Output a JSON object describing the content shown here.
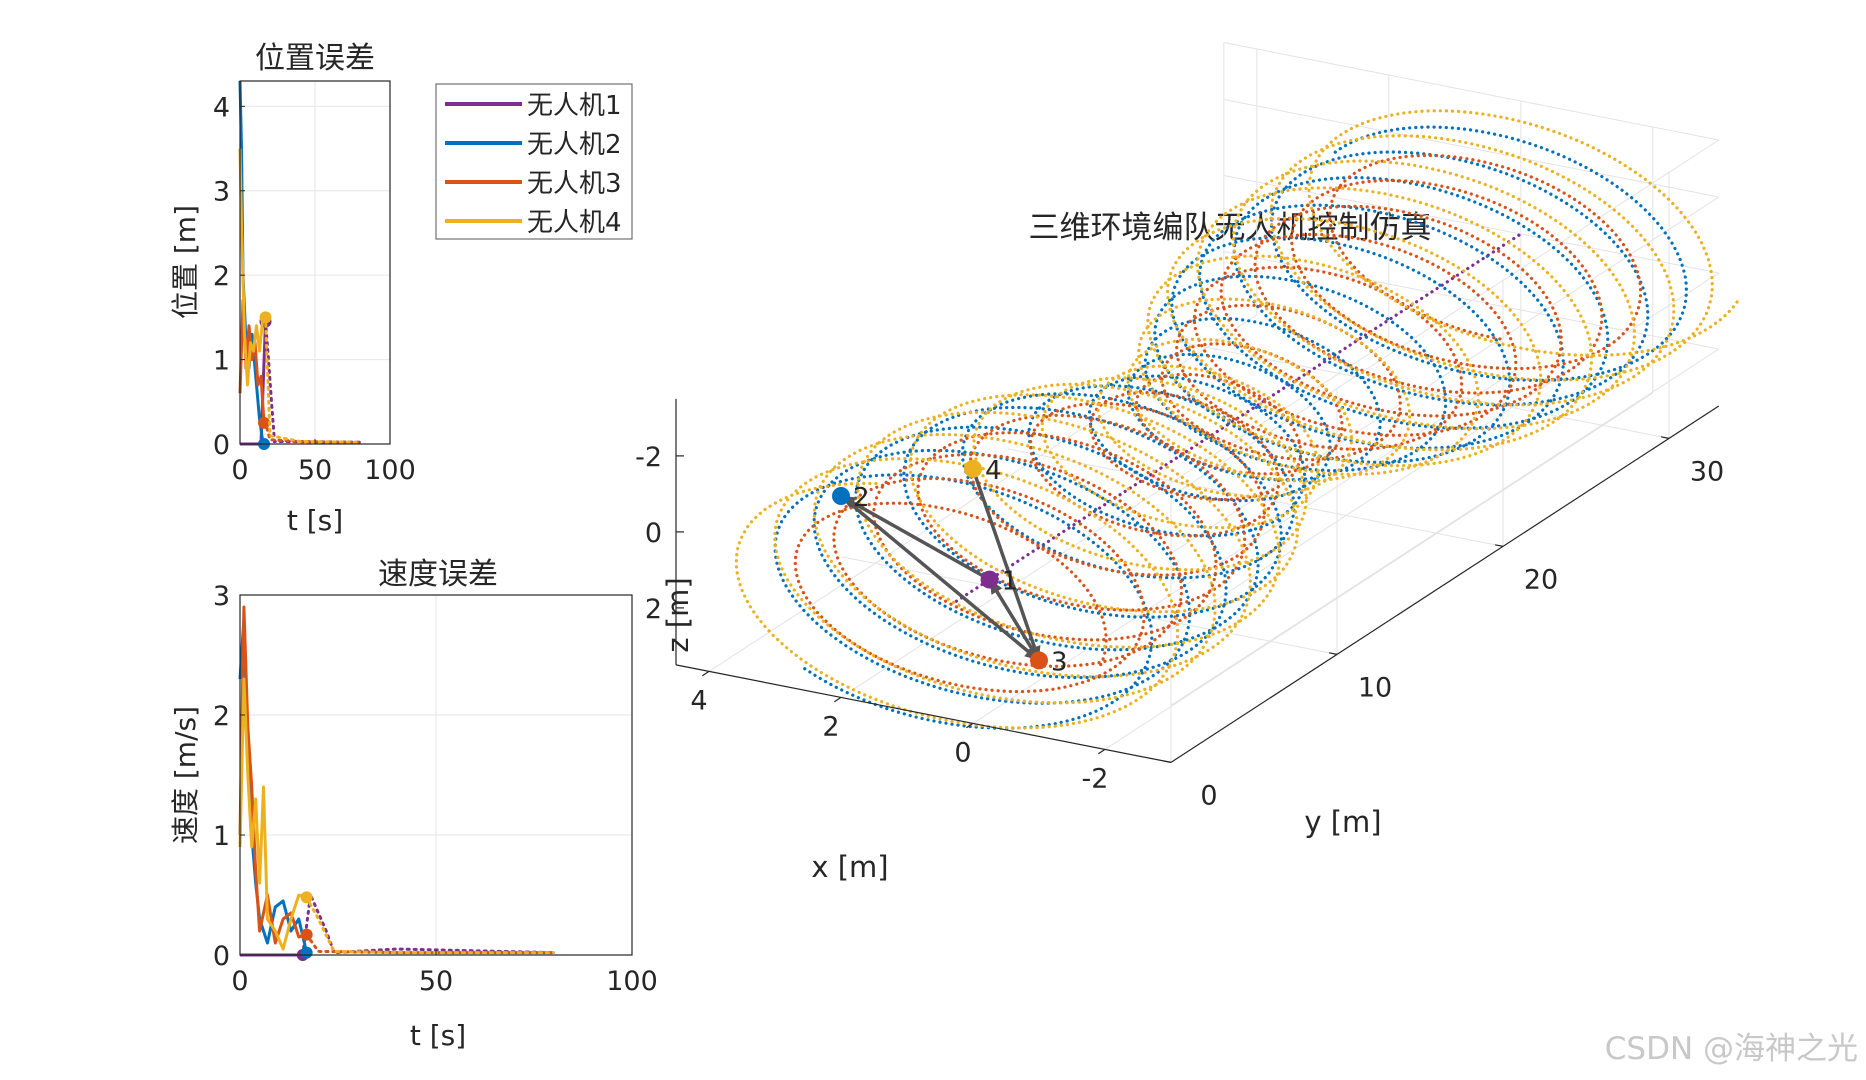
{
  "watermark": "CSDN @海神之光",
  "chart_data": [
    {
      "type": "line",
      "title": "位置误差",
      "xlabel": "t [s]",
      "ylabel": "位置 [m]",
      "xlim": [
        0,
        100
      ],
      "ylim": [
        0,
        4.3
      ],
      "xticks": [
        "0",
        "50",
        "100"
      ],
      "yticks": [
        "0",
        "1",
        "2",
        "3",
        "4"
      ],
      "grid": true,
      "legend": {
        "position": "top-right-outside",
        "entries": [
          "无人机1",
          "无人机2",
          "无人机3",
          "无人机4"
        ]
      },
      "series": [
        {
          "name": "无人机1",
          "color": "#7E2F8E",
          "style": "solid-then-dotted",
          "x": [
            0,
            14,
            17,
            19,
            21,
            23,
            80
          ],
          "y": [
            0,
            0,
            1.45,
            1.0,
            0.5,
            0.03,
            0.02
          ]
        },
        {
          "name": "无人机2",
          "color": "#0072BD",
          "style": "solid",
          "x": [
            0,
            1,
            2,
            4,
            6,
            8,
            10,
            13,
            15,
            16
          ],
          "y": [
            4.3,
            3.5,
            2.0,
            1.2,
            0.9,
            1.3,
            0.9,
            0.3,
            0.05,
            0
          ]
        },
        {
          "name": "无人机3",
          "color": "#D95319",
          "style": "solid-then-dotted",
          "x": [
            0,
            2,
            4,
            6,
            8,
            10,
            12,
            14,
            16,
            17,
            20,
            40,
            80
          ],
          "y": [
            0.6,
            1.7,
            0.9,
            1.4,
            1.0,
            1.2,
            0.7,
            0.8,
            0.25,
            0.25,
            0.05,
            0.03,
            0.02
          ]
        },
        {
          "name": "无人机4",
          "color": "#EDB120",
          "style": "solid-then-dotted",
          "x": [
            0,
            1,
            3,
            5,
            7,
            9,
            11,
            13,
            15,
            17,
            20,
            40,
            80
          ],
          "y": [
            3.5,
            2.6,
            1.3,
            0.7,
            1.2,
            1.1,
            1.4,
            1.1,
            1.45,
            1.5,
            0.1,
            0.03,
            0.02
          ]
        }
      ]
    },
    {
      "type": "line",
      "title": "速度误差",
      "xlabel": "t [s]",
      "ylabel": "速度 [m/s]",
      "xlim": [
        0,
        100
      ],
      "ylim": [
        0,
        3
      ],
      "xticks": [
        "0",
        "50",
        "100"
      ],
      "yticks": [
        "0",
        "1",
        "2",
        "3"
      ],
      "grid": true,
      "series": [
        {
          "name": "无人机1",
          "color": "#7E2F8E",
          "style": "solid-then-dotted",
          "x": [
            0,
            16,
            18,
            22,
            24,
            40,
            80
          ],
          "y": [
            0,
            0,
            0.5,
            0.2,
            0.02,
            0.05,
            0.02
          ]
        },
        {
          "name": "无人机2",
          "color": "#0072BD",
          "style": "solid",
          "x": [
            0,
            1,
            2,
            3,
            4,
            5,
            7,
            9,
            11,
            13,
            15,
            17
          ],
          "y": [
            2.3,
            2.8,
            1.7,
            1.0,
            0.6,
            0.3,
            0.1,
            0.4,
            0.45,
            0.2,
            0.3,
            0.02
          ]
        },
        {
          "name": "无人机3",
          "color": "#D95319",
          "style": "solid-then-dotted",
          "x": [
            0,
            1,
            2,
            3,
            4,
            5,
            7,
            9,
            11,
            13,
            15,
            17,
            20,
            40,
            80
          ],
          "y": [
            1.0,
            2.9,
            1.9,
            1.4,
            0.7,
            0.2,
            0.5,
            0.1,
            0.3,
            0.35,
            0.15,
            0.17,
            0.03,
            0.02,
            0.02
          ]
        },
        {
          "name": "无人机4",
          "color": "#EDB120",
          "style": "solid-then-dotted",
          "x": [
            0,
            1,
            2,
            3,
            4,
            5,
            6,
            7,
            9,
            11,
            13,
            15,
            17,
            20,
            24,
            40,
            80
          ],
          "y": [
            0.9,
            2.3,
            1.5,
            0.9,
            1.3,
            0.6,
            1.4,
            0.3,
            0.2,
            0.05,
            0.3,
            0.5,
            0.48,
            0.3,
            0.03,
            0.02,
            0.02
          ]
        }
      ]
    },
    {
      "type": "line",
      "subtype": "3d",
      "title": "三维环境编队无人机控制仿真",
      "xlabel": "x [m]",
      "ylabel": "y [m]",
      "zlabel": "z [m]",
      "xlim": [
        -3,
        4.5
      ],
      "ylim": [
        0,
        33
      ],
      "zlim": [
        -3.5,
        3.5
      ],
      "zdir": "reverse",
      "xticks": [
        4,
        2,
        0,
        -2
      ],
      "xtick_labels": [
        "4",
        "2",
        "0",
        "-2"
      ],
      "yticks": [
        0,
        10,
        20,
        30
      ],
      "ytick_labels": [
        "0",
        "10",
        "20",
        "30"
      ],
      "zticks": [
        -2,
        0,
        2
      ],
      "ztick_labels": [
        "-2",
        "0",
        "2"
      ],
      "grid": true,
      "series": [
        {
          "name": "无人机1",
          "color": "#7E2F8E",
          "shape": "axis-line",
          "start": [
            0,
            -1,
            0
          ],
          "end": [
            0,
            33,
            0
          ],
          "style": "dotted"
        },
        {
          "name": "无人机2",
          "color": "#0072BD",
          "shape": "helix",
          "radius": 3.0,
          "pitch": 2.3,
          "y_range": [
            -2,
            32
          ],
          "phase": 0.0,
          "style": "dotted"
        },
        {
          "name": "无人机3",
          "color": "#D95319",
          "shape": "helix",
          "radius": 2.5,
          "pitch": 2.3,
          "y_range": [
            -2,
            32
          ],
          "phase": 2.1,
          "style": "dotted"
        },
        {
          "name": "无人机4",
          "color": "#EDB120",
          "shape": "helix",
          "radius": 3.2,
          "pitch": 2.3,
          "y_range": [
            -2,
            34
          ],
          "phase": 4.2,
          "style": "dotted"
        }
      ],
      "drones": [
        {
          "id": "1",
          "color": "#7E2F8E",
          "pos": [
            0,
            1,
            0
          ]
        },
        {
          "id": "2",
          "color": "#0072BD",
          "pos": [
            2,
            0,
            -1.8
          ]
        },
        {
          "id": "3",
          "color": "#D95319",
          "pos": [
            -1,
            0,
            1.5
          ]
        },
        {
          "id": "4",
          "color": "#EDB120",
          "pos": [
            0,
            0,
            -3.2
          ]
        }
      ],
      "links": [
        [
          "1",
          "2"
        ],
        [
          "2",
          "3"
        ],
        [
          "3",
          "1"
        ],
        [
          "4",
          "3"
        ]
      ]
    }
  ]
}
